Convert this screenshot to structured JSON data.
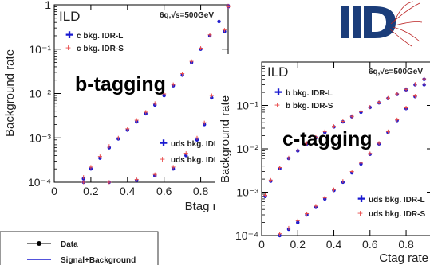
{
  "chart_data": [
    {
      "type": "scatter",
      "panel_label": "ILD",
      "energy_label": "6q,√s=500GeV",
      "overlay_title": "b-tagging",
      "xlabel": "Btag ra",
      "ylabel": "Background rate",
      "xlim": [
        0,
        0.95
      ],
      "yscale": "log",
      "ylim": [
        0.0001,
        1
      ],
      "xticks": [
        "0",
        "0.2",
        "0.4",
        "0.6",
        "0.8"
      ],
      "yticks": [
        "10⁻⁴",
        "10⁻³",
        "10⁻²",
        "10⁻¹",
        "1"
      ],
      "legend_top": [
        "c bkg. IDR-L",
        "c bkg. IDR-S"
      ],
      "legend_bottom": [
        "uds bkg. IDR",
        "uds bkg. IDR"
      ],
      "series": [
        {
          "name": "c bkg. IDR-L",
          "color": "#1a1ad0",
          "marker": "filled",
          "x": [
            0.16,
            0.2,
            0.25,
            0.3,
            0.35,
            0.4,
            0.45,
            0.5,
            0.55,
            0.6,
            0.65,
            0.7,
            0.75,
            0.8,
            0.85,
            0.9,
            0.95
          ],
          "y": [
            0.00012,
            0.0002,
            0.00035,
            0.0006,
            0.00095,
            0.0015,
            0.0023,
            0.0035,
            0.0055,
            0.009,
            0.015,
            0.026,
            0.05,
            0.1,
            0.2,
            0.42,
            0.95
          ]
        },
        {
          "name": "c bkg. IDR-S",
          "color": "#e84a4a",
          "marker": "cross",
          "x": [
            0.16,
            0.2,
            0.25,
            0.3,
            0.35,
            0.4,
            0.45,
            0.5,
            0.55,
            0.6,
            0.65,
            0.7,
            0.75,
            0.8,
            0.85,
            0.9,
            0.95
          ],
          "y": [
            0.00013,
            0.00022,
            0.00038,
            0.00065,
            0.001,
            0.0016,
            0.0025,
            0.0038,
            0.006,
            0.0098,
            0.016,
            0.028,
            0.053,
            0.105,
            0.21,
            0.43,
            0.95
          ]
        },
        {
          "name": "uds bkg. IDR-L",
          "color": "#1a1ad0",
          "marker": "filled",
          "x": [
            0.16,
            0.3,
            0.45,
            0.55,
            0.65,
            0.72,
            0.78,
            0.82,
            0.86,
            0.9,
            0.93,
            0.95
          ],
          "y": [
            0.0001,
            0.0001,
            0.00011,
            0.00014,
            0.0002,
            0.0004,
            0.0009,
            0.002,
            0.008,
            0.04,
            0.25,
            0.9
          ]
        },
        {
          "name": "uds bkg. IDR-S",
          "color": "#e84a4a",
          "marker": "cross",
          "x": [
            0.16,
            0.3,
            0.45,
            0.55,
            0.65,
            0.72,
            0.78,
            0.82,
            0.86,
            0.9,
            0.93,
            0.95
          ],
          "y": [
            0.0001,
            0.0001,
            0.000115,
            0.00015,
            0.00022,
            0.00045,
            0.001,
            0.0022,
            0.009,
            0.045,
            0.27,
            0.9
          ]
        }
      ]
    },
    {
      "type": "scatter",
      "panel_label": "ILD",
      "energy_label": "6q,√s=500GeV",
      "overlay_title": "c-tagging",
      "xlabel": "Ctag rate",
      "ylabel": "Background rate",
      "xlim": [
        0,
        0.95
      ],
      "yscale": "log",
      "ylim": [
        0.0001,
        1
      ],
      "xticks": [
        "0",
        "0.2",
        "0.4",
        "0.6",
        "0.8"
      ],
      "yticks": [
        "10⁻⁴",
        "10⁻³",
        "10⁻²",
        "10⁻¹"
      ],
      "legend_top": [
        "b bkg. IDR-L",
        "b bkg. IDR-S"
      ],
      "legend_bottom": [
        "uds bkg. IDR-L",
        "uds bkg. IDR-S"
      ],
      "series": [
        {
          "name": "b bkg. IDR-L",
          "color": "#1a1ad0",
          "marker": "filled",
          "x": [
            0.02,
            0.05,
            0.1,
            0.15,
            0.2,
            0.25,
            0.3,
            0.35,
            0.4,
            0.45,
            0.5,
            0.55,
            0.6,
            0.65,
            0.7,
            0.75,
            0.8,
            0.85,
            0.9,
            0.95
          ],
          "y": [
            0.0008,
            0.0018,
            0.0035,
            0.006,
            0.009,
            0.013,
            0.018,
            0.024,
            0.032,
            0.042,
            0.055,
            0.07,
            0.09,
            0.115,
            0.145,
            0.18,
            0.23,
            0.3,
            0.4,
            0.55
          ]
        },
        {
          "name": "b bkg. IDR-S",
          "color": "#e84a4a",
          "marker": "cross",
          "x": [
            0.02,
            0.05,
            0.1,
            0.15,
            0.2,
            0.25,
            0.3,
            0.35,
            0.4,
            0.45,
            0.5,
            0.55,
            0.6,
            0.65,
            0.7,
            0.75,
            0.8,
            0.85,
            0.9,
            0.95
          ],
          "y": [
            0.00085,
            0.0019,
            0.0037,
            0.0062,
            0.0093,
            0.0134,
            0.0185,
            0.025,
            0.033,
            0.043,
            0.056,
            0.072,
            0.092,
            0.118,
            0.148,
            0.185,
            0.235,
            0.31,
            0.41,
            0.56
          ]
        },
        {
          "name": "uds bkg. IDR-L",
          "color": "#1a1ad0",
          "marker": "filled",
          "x": [
            0.1,
            0.15,
            0.2,
            0.25,
            0.3,
            0.35,
            0.4,
            0.45,
            0.5,
            0.55,
            0.6,
            0.65,
            0.7,
            0.75,
            0.8,
            0.85,
            0.9,
            0.95
          ],
          "y": [
            0.0001,
            0.00014,
            0.0002,
            0.0003,
            0.00045,
            0.0007,
            0.0011,
            0.0017,
            0.0028,
            0.0045,
            0.0075,
            0.013,
            0.024,
            0.045,
            0.085,
            0.16,
            0.3,
            0.55
          ]
        },
        {
          "name": "uds bkg. IDR-S",
          "color": "#e84a4a",
          "marker": "cross",
          "x": [
            0.1,
            0.15,
            0.2,
            0.25,
            0.3,
            0.35,
            0.4,
            0.45,
            0.5,
            0.55,
            0.6,
            0.65,
            0.7,
            0.75,
            0.8,
            0.85,
            0.9,
            0.95
          ],
          "y": [
            0.00011,
            0.00015,
            0.00022,
            0.00032,
            0.00048,
            0.00074,
            0.00115,
            0.0018,
            0.003,
            0.0047,
            0.0078,
            0.0135,
            0.025,
            0.047,
            0.088,
            0.165,
            0.31,
            0.56
          ]
        }
      ]
    },
    {
      "type": "line",
      "legend": [
        "Data",
        "Signal+Background"
      ]
    }
  ]
}
